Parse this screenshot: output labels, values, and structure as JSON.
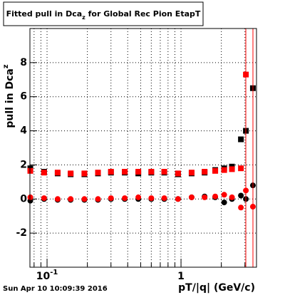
{
  "chart_data": {
    "type": "scatter",
    "title": {
      "main": "Fitted pull in Dca",
      "sub": "z",
      "rest": " for Global Rec Pion EtapT"
    },
    "ylabel": {
      "main": "pull in Dca",
      "sub": "z"
    },
    "xlabel": "pT/|q| (GeV/c)",
    "footer": "Sun Apr 10 10:09:39 2016",
    "xlog": true,
    "grid": true,
    "xlim": [
      0.0745,
      3.66
    ],
    "ylim": [
      -4,
      10
    ],
    "xticks": [
      {
        "value": 0.1,
        "label": "10",
        "exponent": "-1"
      },
      1
    ],
    "xminorticks": [
      0.08,
      0.09,
      0.2,
      0.3,
      0.4,
      0.5,
      0.6,
      0.7,
      0.8,
      0.9,
      2,
      3
    ],
    "yticks": [
      -2,
      0,
      2,
      4,
      6,
      8
    ],
    "x": [
      0.075,
      0.095,
      0.12,
      0.15,
      0.19,
      0.24,
      0.3,
      0.38,
      0.48,
      0.6,
      0.75,
      0.95,
      1.2,
      1.5,
      1.8,
      2.1,
      2.4,
      2.8,
      3.05,
      3.44
    ],
    "series": [
      {
        "color": "#000000",
        "marker": "square",
        "values": [
          1.8,
          1.6,
          1.5,
          1.45,
          1.45,
          1.5,
          1.55,
          1.55,
          1.5,
          1.55,
          1.55,
          1.45,
          1.5,
          1.55,
          1.7,
          1.8,
          1.9,
          3.5,
          4.0,
          6.5
        ]
      },
      {
        "color": "#000000",
        "marker": "circle",
        "values": [
          -0.1,
          0.0,
          -0.05,
          -0.05,
          -0.05,
          -0.05,
          0.0,
          0.0,
          0.0,
          0.0,
          0.0,
          0.0,
          0.1,
          0.15,
          0.1,
          -0.2,
          0.0,
          0.2,
          0.0,
          0.8
        ]
      },
      {
        "color": "#ff0000",
        "marker": "square",
        "values": [
          1.65,
          1.55,
          1.55,
          1.5,
          1.5,
          1.55,
          1.6,
          1.6,
          1.6,
          1.6,
          1.6,
          1.5,
          1.55,
          1.6,
          1.65,
          1.7,
          1.75,
          1.8,
          7.3,
          null
        ]
      },
      {
        "color": "#ff0000",
        "marker": "circle",
        "values": [
          0.1,
          0.05,
          0.0,
          0.0,
          0.0,
          0.0,
          0.05,
          0.05,
          0.1,
          0.05,
          0.05,
          0.0,
          0.1,
          0.1,
          0.15,
          0.25,
          0.1,
          -0.5,
          0.5,
          -0.45
        ]
      }
    ]
  }
}
